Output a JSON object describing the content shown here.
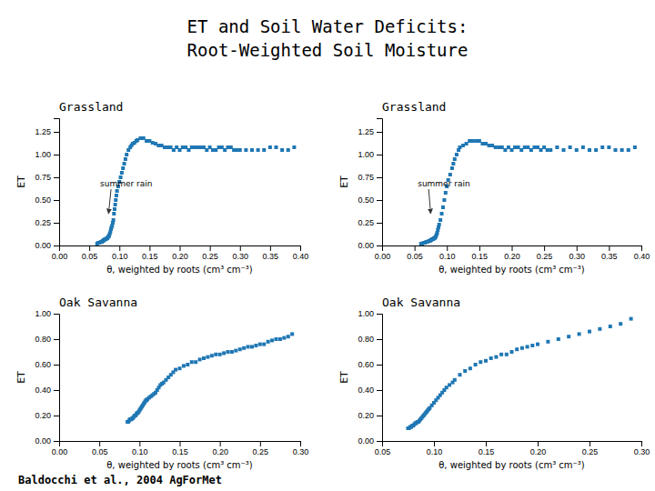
{
  "title": "ET and Soil Water Deficits:",
  "subtitle": "Root-Weighted Soil Moisture",
  "annotations": [
    "Baldocchi et al., 2004 AgForMet"
  ],
  "chart_data": [
    {
      "type": "scatter",
      "title": "Grassland",
      "x_label": "θ, weighted by roots (cm³ cm⁻³)",
      "y_label": "ET",
      "marker": "square",
      "grid": false,
      "xlim": [
        0,
        0.4
      ],
      "ylim": [
        0,
        1.4
      ],
      "xticks": [
        {
          "value": 0,
          "label": "0.00"
        },
        0.05,
        {
          "value": 0.1,
          "label": "0.10"
        },
        0.15,
        {
          "value": 0.2,
          "label": "0.20"
        },
        0.25,
        {
          "value": 0.3,
          "label": "0.30"
        },
        0.35,
        {
          "value": 0.4,
          "label": "0.40"
        }
      ],
      "yticks": [
        {
          "value": 0,
          "label": "0.00"
        },
        0.25,
        {
          "value": 0.5,
          "label": "0.50"
        },
        0.75,
        {
          "value": 1,
          "label": "1.00"
        },
        1.25
      ],
      "annotations": [
        {
          "text": "summer rain",
          "x": 0.082,
          "y": 0.35,
          "text_x": 0.068,
          "text_y": 0.68
        }
      ],
      "x": [
        0.063,
        0.065,
        0.067,
        0.069,
        0.071,
        0.072,
        0.073,
        0.074,
        0.075,
        0.076,
        0.077,
        0.078,
        0.079,
        0.08,
        0.081,
        0.082,
        0.083,
        0.084,
        0.085,
        0.086,
        0.087,
        0.088,
        0.089,
        0.09,
        0.091,
        0.092,
        0.093,
        0.094,
        0.095,
        0.096,
        0.098,
        0.1,
        0.102,
        0.104,
        0.106,
        0.108,
        0.11,
        0.112,
        0.115,
        0.118,
        0.12,
        0.122,
        0.125,
        0.128,
        0.13,
        0.135,
        0.14,
        0.145,
        0.15,
        0.155,
        0.16,
        0.165,
        0.17,
        0.175,
        0.18,
        0.185,
        0.19,
        0.195,
        0.2,
        0.205,
        0.21,
        0.215,
        0.22,
        0.225,
        0.23,
        0.235,
        0.24,
        0.245,
        0.25,
        0.255,
        0.26,
        0.265,
        0.27,
        0.275,
        0.28,
        0.285,
        0.29,
        0.295,
        0.3,
        0.31,
        0.32,
        0.33,
        0.34,
        0.35,
        0.36,
        0.37,
        0.38,
        0.39
      ],
      "values": [
        0.02,
        0.03,
        0.03,
        0.04,
        0.04,
        0.05,
        0.05,
        0.06,
        0.06,
        0.07,
        0.07,
        0.07,
        0.08,
        0.08,
        0.09,
        0.1,
        0.11,
        0.13,
        0.15,
        0.18,
        0.2,
        0.22,
        0.25,
        0.28,
        0.35,
        0.4,
        0.45,
        0.5,
        0.55,
        0.6,
        0.65,
        0.7,
        0.75,
        0.8,
        0.85,
        0.9,
        0.95,
        1.0,
        1.05,
        1.08,
        1.1,
        1.12,
        1.13,
        1.15,
        1.16,
        1.18,
        1.18,
        1.15,
        1.15,
        1.13,
        1.12,
        1.1,
        1.1,
        1.08,
        1.08,
        1.08,
        1.05,
        1.08,
        1.05,
        1.08,
        1.08,
        1.05,
        1.08,
        1.08,
        1.08,
        1.08,
        1.08,
        1.05,
        1.08,
        1.05,
        1.05,
        1.08,
        1.08,
        1.05,
        1.08,
        1.08,
        1.05,
        1.05,
        1.05,
        1.05,
        1.05,
        1.05,
        1.05,
        1.08,
        1.08,
        1.05,
        1.05,
        1.08
      ]
    },
    {
      "type": "scatter",
      "title": "Grassland",
      "x_label": "θ, weighted by roots (cm³ cm⁻³)",
      "y_label": "ET",
      "marker": "square",
      "grid": false,
      "xlim": [
        0,
        0.4
      ],
      "ylim": [
        0,
        1.4
      ],
      "xticks": [
        {
          "value": 0,
          "label": "0.00"
        },
        0.05,
        {
          "value": 0.1,
          "label": "0.10"
        },
        0.15,
        {
          "value": 0.2,
          "label": "0.20"
        },
        0.25,
        {
          "value": 0.3,
          "label": "0.30"
        },
        0.35,
        {
          "value": 0.4,
          "label": "0.40"
        }
      ],
      "yticks": [
        {
          "value": 0,
          "label": "0.00"
        },
        0.25,
        {
          "value": 0.5,
          "label": "0.50"
        },
        0.75,
        {
          "value": 1,
          "label": "1.00"
        },
        1.25
      ],
      "annotations": [
        {
          "text": "summer rain",
          "x": 0.075,
          "y": 0.35,
          "text_x": 0.055,
          "text_y": 0.68
        }
      ],
      "x": [
        0.06,
        0.062,
        0.064,
        0.066,
        0.068,
        0.07,
        0.072,
        0.074,
        0.075,
        0.076,
        0.077,
        0.078,
        0.079,
        0.08,
        0.081,
        0.082,
        0.083,
        0.084,
        0.085,
        0.086,
        0.087,
        0.088,
        0.09,
        0.092,
        0.094,
        0.096,
        0.098,
        0.1,
        0.102,
        0.105,
        0.108,
        0.11,
        0.112,
        0.115,
        0.118,
        0.12,
        0.125,
        0.13,
        0.135,
        0.14,
        0.145,
        0.15,
        0.155,
        0.16,
        0.165,
        0.17,
        0.175,
        0.18,
        0.185,
        0.19,
        0.195,
        0.2,
        0.205,
        0.21,
        0.215,
        0.22,
        0.225,
        0.23,
        0.235,
        0.24,
        0.245,
        0.25,
        0.255,
        0.26,
        0.27,
        0.28,
        0.29,
        0.3,
        0.31,
        0.32,
        0.33,
        0.34,
        0.35,
        0.36,
        0.37,
        0.38,
        0.39
      ],
      "values": [
        0.02,
        0.02,
        0.03,
        0.03,
        0.04,
        0.04,
        0.05,
        0.05,
        0.06,
        0.06,
        0.07,
        0.07,
        0.07,
        0.08,
        0.08,
        0.09,
        0.1,
        0.12,
        0.14,
        0.17,
        0.2,
        0.23,
        0.28,
        0.35,
        0.42,
        0.5,
        0.58,
        0.65,
        0.72,
        0.78,
        0.85,
        0.9,
        0.95,
        1.0,
        1.05,
        1.08,
        1.1,
        1.12,
        1.15,
        1.15,
        1.15,
        1.15,
        1.12,
        1.12,
        1.1,
        1.1,
        1.08,
        1.08,
        1.08,
        1.05,
        1.08,
        1.05,
        1.08,
        1.08,
        1.05,
        1.08,
        1.08,
        1.05,
        1.08,
        1.08,
        1.05,
        1.08,
        1.05,
        1.05,
        1.08,
        1.05,
        1.08,
        1.05,
        1.08,
        1.05,
        1.05,
        1.08,
        1.08,
        1.05,
        1.05,
        1.05,
        1.08
      ]
    },
    {
      "type": "scatter",
      "title": "Oak Savanna",
      "x_label": "θ, weighted by roots (cm³ cm⁻³)",
      "y_label": "ET",
      "marker": "square",
      "grid": false,
      "xlim": [
        0,
        0.3
      ],
      "ylim": [
        0,
        1
      ],
      "xticks": [
        {
          "value": 0,
          "label": "0.00"
        },
        0.05,
        {
          "value": 0.1,
          "label": "0.10"
        },
        0.15,
        {
          "value": 0.2,
          "label": "0.20"
        },
        0.25,
        {
          "value": 0.3,
          "label": "0.30"
        }
      ],
      "yticks": [
        {
          "value": 0,
          "label": "0.00"
        },
        {
          "value": 0.2,
          "label": "0.20"
        },
        {
          "value": 0.4,
          "label": "0.40"
        },
        {
          "value": 0.6,
          "label": "0.60"
        },
        {
          "value": 0.8,
          "label": "0.80"
        },
        {
          "value": 1,
          "label": "1.00"
        }
      ],
      "x": [
        0.085,
        0.086,
        0.087,
        0.088,
        0.089,
        0.09,
        0.091,
        0.092,
        0.093,
        0.094,
        0.095,
        0.096,
        0.097,
        0.098,
        0.099,
        0.1,
        0.101,
        0.102,
        0.103,
        0.104,
        0.105,
        0.106,
        0.107,
        0.108,
        0.109,
        0.11,
        0.112,
        0.114,
        0.116,
        0.118,
        0.12,
        0.122,
        0.124,
        0.126,
        0.128,
        0.13,
        0.133,
        0.136,
        0.139,
        0.142,
        0.145,
        0.15,
        0.155,
        0.16,
        0.165,
        0.17,
        0.175,
        0.18,
        0.185,
        0.19,
        0.195,
        0.2,
        0.205,
        0.21,
        0.215,
        0.22,
        0.225,
        0.23,
        0.235,
        0.24,
        0.245,
        0.25,
        0.255,
        0.26,
        0.265,
        0.27,
        0.275,
        0.28,
        0.285,
        0.29
      ],
      "values": [
        0.15,
        0.15,
        0.16,
        0.17,
        0.17,
        0.17,
        0.18,
        0.18,
        0.19,
        0.2,
        0.2,
        0.21,
        0.22,
        0.22,
        0.23,
        0.24,
        0.25,
        0.26,
        0.27,
        0.28,
        0.29,
        0.3,
        0.31,
        0.32,
        0.32,
        0.33,
        0.34,
        0.35,
        0.36,
        0.37,
        0.38,
        0.4,
        0.42,
        0.44,
        0.45,
        0.46,
        0.48,
        0.5,
        0.52,
        0.54,
        0.56,
        0.57,
        0.59,
        0.6,
        0.62,
        0.62,
        0.64,
        0.65,
        0.66,
        0.67,
        0.68,
        0.68,
        0.69,
        0.7,
        0.7,
        0.71,
        0.72,
        0.73,
        0.74,
        0.74,
        0.75,
        0.76,
        0.76,
        0.78,
        0.79,
        0.8,
        0.8,
        0.81,
        0.82,
        0.84
      ]
    },
    {
      "type": "scatter",
      "title": "Oak Savanna",
      "x_label": "θ, weighted by roots (cm³ cm⁻³)",
      "y_label": "ET",
      "marker": "square",
      "grid": false,
      "xlim": [
        0.05,
        0.3
      ],
      "ylim": [
        0,
        1
      ],
      "xticks": [
        0.05,
        {
          "value": 0.1,
          "label": "0.10"
        },
        0.15,
        {
          "value": 0.2,
          "label": "0.20"
        },
        0.25,
        {
          "value": 0.3,
          "label": "0.30"
        }
      ],
      "yticks": [
        {
          "value": 0,
          "label": "0.00"
        },
        {
          "value": 0.2,
          "label": "0.20"
        },
        {
          "value": 0.4,
          "label": "0.40"
        },
        {
          "value": 0.6,
          "label": "0.60"
        },
        {
          "value": 0.8,
          "label": "0.80"
        },
        {
          "value": 1,
          "label": "1.00"
        }
      ],
      "x": [
        0.075,
        0.076,
        0.077,
        0.078,
        0.079,
        0.08,
        0.081,
        0.082,
        0.083,
        0.084,
        0.085,
        0.086,
        0.087,
        0.088,
        0.089,
        0.09,
        0.091,
        0.092,
        0.093,
        0.094,
        0.095,
        0.096,
        0.098,
        0.1,
        0.102,
        0.104,
        0.106,
        0.108,
        0.11,
        0.112,
        0.115,
        0.118,
        0.12,
        0.125,
        0.13,
        0.135,
        0.14,
        0.145,
        0.15,
        0.155,
        0.16,
        0.165,
        0.17,
        0.175,
        0.18,
        0.185,
        0.19,
        0.195,
        0.2,
        0.21,
        0.22,
        0.23,
        0.24,
        0.25,
        0.26,
        0.27,
        0.28,
        0.29
      ],
      "values": [
        0.1,
        0.1,
        0.11,
        0.11,
        0.12,
        0.12,
        0.13,
        0.14,
        0.14,
        0.15,
        0.15,
        0.16,
        0.17,
        0.18,
        0.19,
        0.2,
        0.21,
        0.22,
        0.23,
        0.24,
        0.25,
        0.26,
        0.28,
        0.3,
        0.32,
        0.34,
        0.36,
        0.38,
        0.4,
        0.42,
        0.44,
        0.46,
        0.48,
        0.52,
        0.55,
        0.57,
        0.6,
        0.62,
        0.63,
        0.65,
        0.66,
        0.68,
        0.68,
        0.7,
        0.72,
        0.73,
        0.74,
        0.75,
        0.76,
        0.78,
        0.8,
        0.82,
        0.84,
        0.86,
        0.88,
        0.9,
        0.92,
        0.96
      ]
    }
  ]
}
